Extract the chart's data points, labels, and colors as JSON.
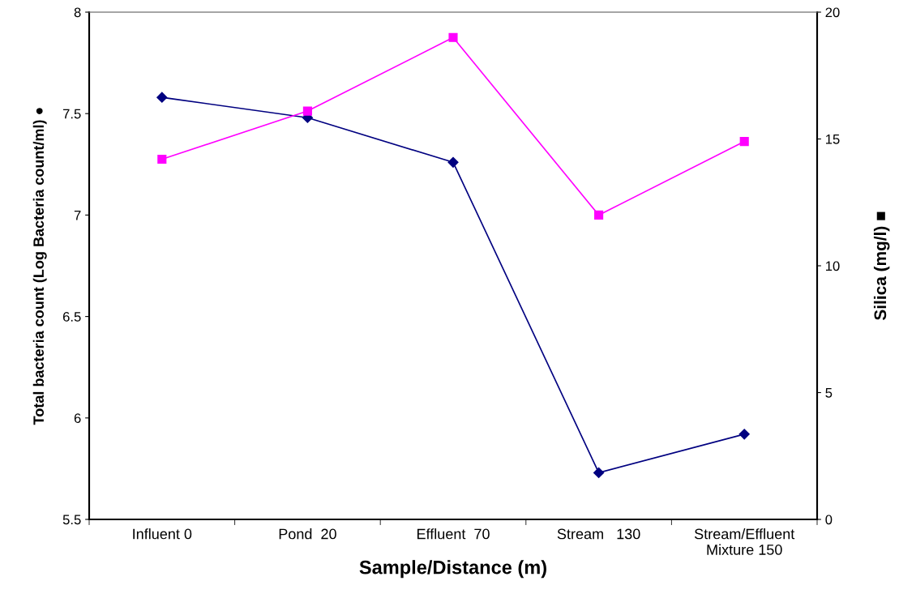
{
  "chart_data": {
    "type": "line",
    "xlabel": "Sample/Distance (m)",
    "ylabel": "Total bacteria count (Log Bacteria count/ml) ●",
    "y2label": "Silica (mg/l) ■",
    "categories": [
      "Influent 0",
      "Pond  20",
      "Effluent  70",
      "Stream   130",
      "Stream/Effluent\nMixture 150"
    ],
    "series": [
      {
        "color": "#000080",
        "marker": "diamond",
        "values": [
          7.58,
          7.48,
          7.26,
          5.73,
          5.92
        ]
      },
      {
        "color": "#ff00ff",
        "marker": "square",
        "axis": "y2",
        "values": [
          14.2,
          16.1,
          19.0,
          12.0,
          14.9
        ]
      }
    ],
    "ylim": [
      5.5,
      8
    ],
    "yticks": [
      5.5,
      6,
      6.5,
      7,
      7.5,
      8
    ],
    "y2lim": [
      0,
      20
    ],
    "y2ticks": [
      0,
      5,
      10,
      15,
      20
    ],
    "grid": false,
    "legend": false
  }
}
